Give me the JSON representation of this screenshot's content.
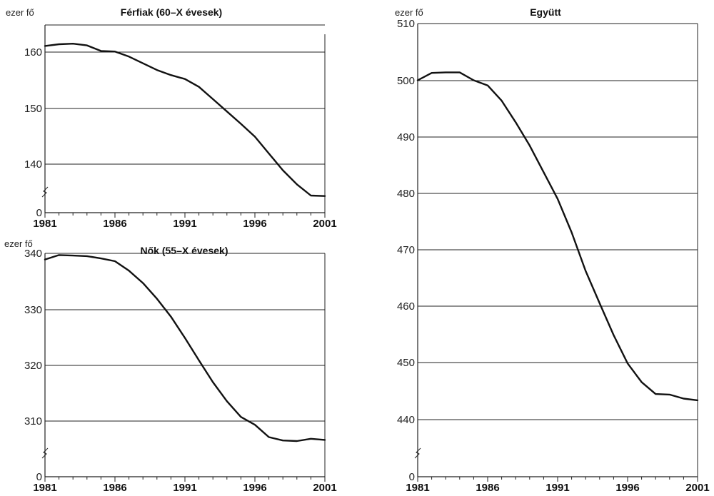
{
  "chart_data": [
    {
      "type": "line",
      "title": "Férfiak (60–X évesek)",
      "unit_label": "ezer fő",
      "x_ticks": [
        "1981",
        "1986",
        "1991",
        "1996",
        "2001"
      ],
      "y_ticks": [
        "0",
        "140",
        "150",
        "160"
      ],
      "ylim": [
        135,
        165
      ],
      "axis_break": true,
      "grid": true,
      "x": [
        1981,
        1982,
        1983,
        1984,
        1985,
        1986,
        1987,
        1988,
        1989,
        1990,
        1991,
        1992,
        1993,
        1994,
        1995,
        1996,
        1997,
        1998,
        1999,
        2000,
        2001
      ],
      "values": [
        161.1,
        161.4,
        161.5,
        161.2,
        160.2,
        160.1,
        159.2,
        158.0,
        156.8,
        155.9,
        155.2,
        153.8,
        151.6,
        149.4,
        147.2,
        144.9,
        141.9,
        138.9,
        136.4,
        134.4,
        134.3
      ]
    },
    {
      "type": "line",
      "title": "Nők (55–X évesek)",
      "unit_label": "ezer fő",
      "x_ticks": [
        "1981",
        "1986",
        "1991",
        "1996",
        "2001"
      ],
      "y_ticks": [
        "0",
        "310",
        "320",
        "330",
        "340"
      ],
      "ylim": [
        300,
        340
      ],
      "axis_break": true,
      "grid": true,
      "x": [
        1981,
        1982,
        1983,
        1984,
        1985,
        1986,
        1987,
        1988,
        1989,
        1990,
        1991,
        1992,
        1993,
        1994,
        1995,
        1996,
        1997,
        1998,
        1999,
        2000,
        2001
      ],
      "values": [
        338.9,
        339.7,
        339.6,
        339.5,
        339.1,
        338.6,
        336.9,
        334.7,
        331.9,
        328.7,
        324.9,
        320.9,
        317.0,
        313.6,
        310.8,
        309.4,
        307.2,
        306.6,
        306.5,
        306.9,
        306.7
      ]
    },
    {
      "type": "line",
      "title": "Együtt",
      "unit_label": "ezer fő",
      "x_ticks": [
        "1981",
        "1986",
        "1991",
        "1996",
        "2001"
      ],
      "y_ticks": [
        "0",
        "440",
        "450",
        "460",
        "470",
        "480",
        "490",
        "500",
        "510"
      ],
      "ylim": [
        435,
        510
      ],
      "axis_break": true,
      "grid": true,
      "x": [
        1981,
        1982,
        1983,
        1984,
        1985,
        1986,
        1987,
        1988,
        1989,
        1990,
        1991,
        1992,
        1993,
        1994,
        1995,
        1996,
        1997,
        1998,
        1999,
        2000,
        2001
      ],
      "values": [
        500.0,
        501.3,
        501.4,
        501.4,
        500.0,
        499.1,
        496.4,
        492.6,
        488.5,
        483.8,
        479.1,
        473.2,
        466.4,
        460.7,
        455.1,
        450.1,
        446.8,
        444.7,
        444.6,
        443.9,
        443.6
      ]
    }
  ]
}
